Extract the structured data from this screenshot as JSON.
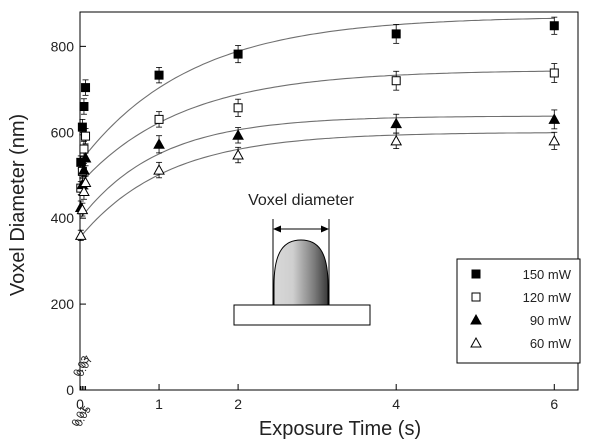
{
  "chart_data": {
    "type": "scatter",
    "xlabel": "Exposure Time (s)",
    "ylabel": "Voxel Diameter (nm)",
    "xlim": [
      0,
      6.3
    ],
    "ylim": [
      0,
      880
    ],
    "x_ticks": [
      0,
      1,
      2,
      4,
      6
    ],
    "x_ticks_extra": [
      0.01,
      0.03,
      0.05,
      0.07
    ],
    "y_ticks": [
      0,
      200,
      400,
      600,
      800
    ],
    "grid": false,
    "legend_position": "bottom-right",
    "annotation": "Voxel diameter",
    "series": [
      {
        "name": "150 mW",
        "marker": "filled-square",
        "x": [
          0.01,
          0.03,
          0.05,
          0.07,
          1,
          2,
          4,
          6
        ],
        "y": [
          530,
          612,
          660,
          704,
          733,
          782,
          829,
          848
        ],
        "err": [
          15,
          18,
          18,
          18,
          18,
          20,
          22,
          20
        ],
        "fit": {
          "A": 870,
          "B": 340,
          "tau": 1.4
        }
      },
      {
        "name": "120 mW",
        "marker": "open-square",
        "x": [
          0.01,
          0.03,
          0.05,
          0.07,
          1,
          2,
          4,
          6
        ],
        "y": [
          470,
          509,
          561,
          591,
          630,
          657,
          720,
          738
        ],
        "err": [
          15,
          15,
          18,
          18,
          18,
          20,
          22,
          22
        ],
        "fit": {
          "A": 745,
          "B": 265,
          "tau": 1.3
        }
      },
      {
        "name": "90 mW",
        "marker": "filled-triangle",
        "x": [
          0.01,
          0.03,
          0.05,
          0.07,
          1,
          2,
          4,
          6
        ],
        "y": [
          425,
          478,
          512,
          540,
          572,
          593,
          620,
          630
        ],
        "err": [
          15,
          15,
          15,
          18,
          20,
          18,
          22,
          22
        ],
        "fit": {
          "A": 638,
          "B": 240,
          "tau": 1.0
        }
      },
      {
        "name": "60 mW",
        "marker": "open-triangle",
        "x": [
          0.01,
          0.03,
          0.05,
          0.07,
          1,
          2,
          4,
          6
        ],
        "y": [
          360,
          420,
          462,
          483,
          512,
          547,
          580,
          580
        ],
        "err": [
          12,
          15,
          18,
          15,
          18,
          18,
          18,
          20
        ],
        "fit": {
          "A": 600,
          "B": 245,
          "tau": 1.1
        }
      }
    ]
  }
}
